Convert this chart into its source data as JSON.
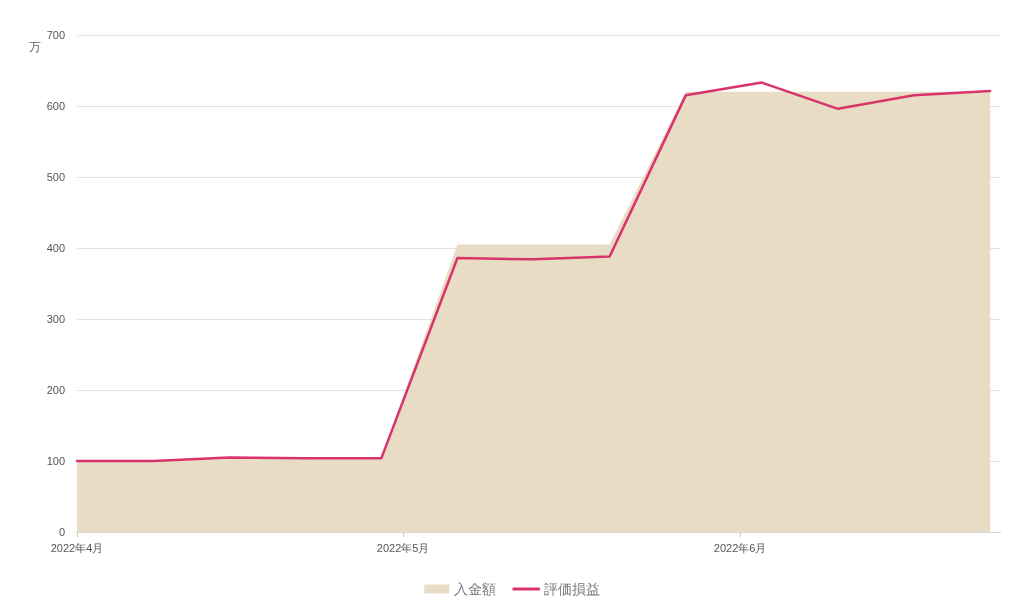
{
  "chart_data": {
    "type": "area",
    "ylabel": "万",
    "x": [
      "2022-04-01",
      "2022-04-08",
      "2022-04-15",
      "2022-04-22",
      "2022-04-29",
      "2022-05-06",
      "2022-05-13",
      "2022-05-20",
      "2022-05-27",
      "2022-06-03",
      "2022-06-10",
      "2022-06-17",
      "2022-06-24"
    ],
    "series": [
      {
        "name": "入金額",
        "color": "#e8dcc4",
        "values": [
          100,
          100,
          105,
          105,
          105,
          405,
          405,
          405,
          620,
          620,
          620,
          620,
          620
        ]
      },
      {
        "name": "評価損益",
        "type": "line",
        "color": "#d9336b",
        "values": [
          100,
          100,
          105,
          104,
          104,
          386,
          384,
          388,
          615,
          633,
          596,
          615,
          621
        ]
      }
    ],
    "xlim": [
      "2022-04-01",
      "2022-06-25"
    ],
    "xticks": [
      {
        "value": "2022-04-01",
        "label": "2022年4月"
      },
      {
        "value": "2022-05-01",
        "label": "2022年5月"
      },
      {
        "value": "2022-06-01",
        "label": "2022年6月"
      }
    ],
    "ylim": [
      0,
      700
    ],
    "yticks": [
      0,
      100,
      200,
      300,
      400,
      500,
      600,
      700
    ],
    "grid": "y",
    "legend": "bottom"
  }
}
